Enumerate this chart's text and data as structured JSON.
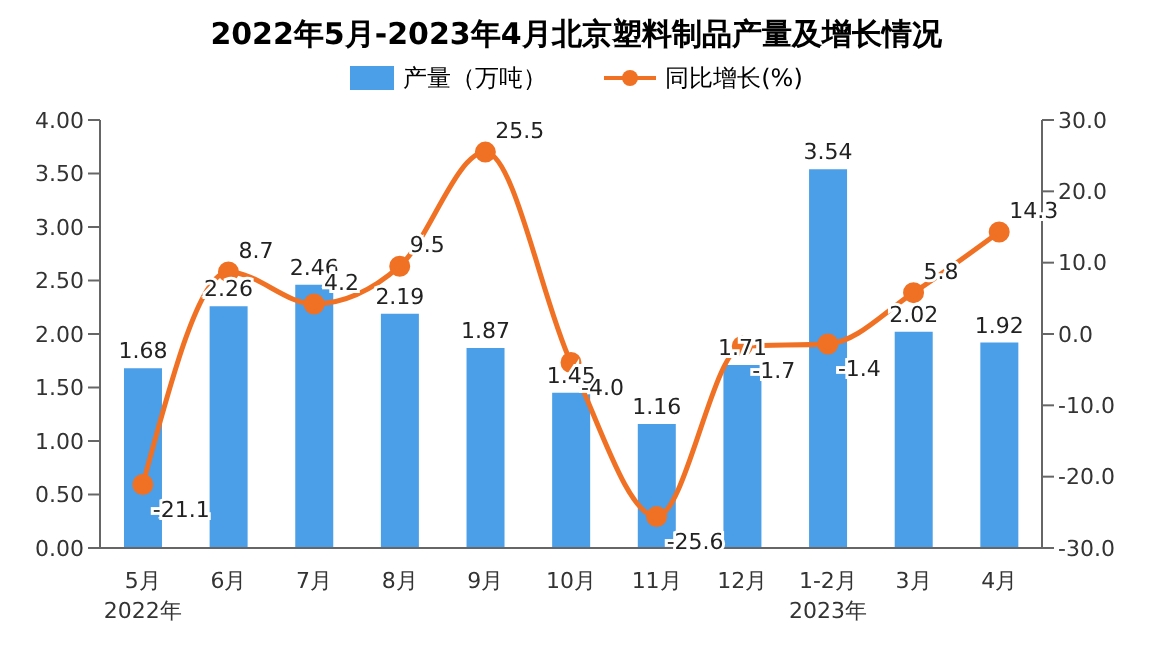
{
  "chart_data": {
    "type": "bar",
    "title": "2022年5月-2023年4月北京塑料制品产量及增长情况",
    "categories": [
      "5月\n2022年",
      "6月",
      "7月",
      "8月",
      "9月",
      "10月",
      "11月",
      "12月",
      "1-2月\n2023年",
      "3月",
      "4月"
    ],
    "series": [
      {
        "name": "产量（万吨）",
        "color": "#4a9fe8",
        "values": [
          1.68,
          2.26,
          2.46,
          2.19,
          1.87,
          1.45,
          1.16,
          1.71,
          3.54,
          2.02,
          1.92
        ],
        "value_labels": [
          "1.68",
          "2.26",
          "2.46",
          "2.19",
          "1.87",
          "1.45",
          "1.16",
          "1.71",
          "3.54",
          "2.02",
          "1.92"
        ]
      },
      {
        "name": "同比增长(%)",
        "type": "line",
        "axis": "y2",
        "color": "#f07124",
        "values": [
          -21.1,
          8.7,
          4.2,
          9.5,
          25.5,
          -4.0,
          -25.6,
          -1.7,
          -1.4,
          5.8,
          14.3
        ],
        "value_labels": [
          "-21.1",
          "8.7",
          "4.2",
          "9.5",
          "25.5",
          "-4.0",
          "-25.6",
          "-1.7",
          "-1.4",
          "5.8",
          "14.3"
        ]
      }
    ],
    "ylim": [
      0,
      4
    ],
    "yticks": [
      {
        "value": 0,
        "label": "0.00"
      },
      {
        "value": 0.5,
        "label": "0.50"
      },
      {
        "value": 1,
        "label": "1.00"
      },
      {
        "value": 1.5,
        "label": "1.50"
      },
      {
        "value": 2,
        "label": "2.00"
      },
      {
        "value": 2.5,
        "label": "2.50"
      },
      {
        "value": 3,
        "label": "3.00"
      },
      {
        "value": 3.5,
        "label": "3.50"
      },
      {
        "value": 4,
        "label": "4.00"
      }
    ],
    "y2lim": [
      -30,
      30
    ],
    "y2ticks": [
      {
        "value": -30,
        "label": "-30.0"
      },
      {
        "value": -20,
        "label": "-20.0"
      },
      {
        "value": -10,
        "label": "-10.0"
      },
      {
        "value": 0,
        "label": "0.0"
      },
      {
        "value": 10,
        "label": "10.0"
      },
      {
        "value": 20,
        "label": "20.0"
      },
      {
        "value": 30,
        "label": "30.0"
      }
    ],
    "legend": "top",
    "marker": "circle",
    "grid": false
  }
}
